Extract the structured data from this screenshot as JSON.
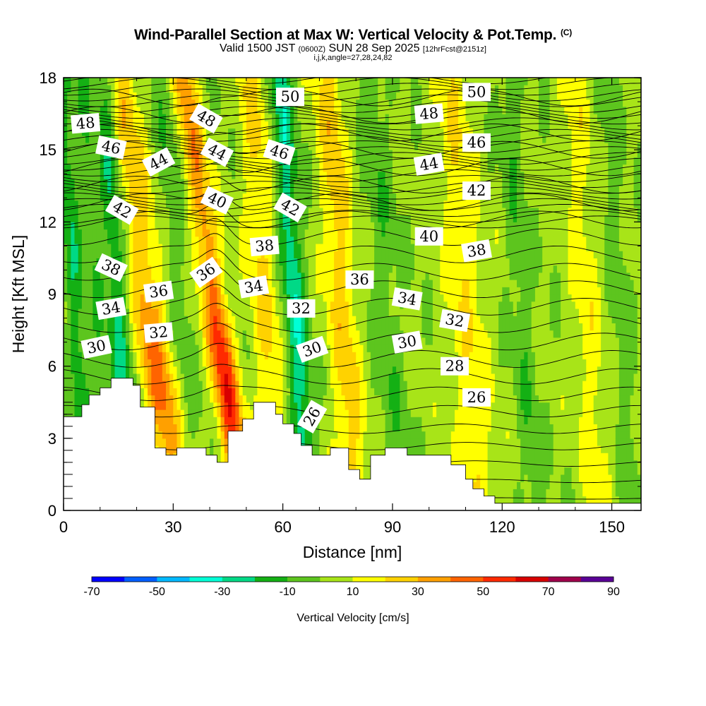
{
  "title": {
    "main": "Wind-Parallel Section at Max W: Vertical Velocity & Pot.Temp.",
    "copyright": "(C)",
    "valid_prefix": "Valid 1500 JST",
    "utc": "(0600Z)",
    "valid_date": "SUN 28 Sep 2025",
    "forecast": "[12hrFcst@2151z]",
    "indices": "i,j,k,angle=27,28,24,82"
  },
  "chart_data": {
    "type": "heatmap",
    "xlabel": "Distance [nm]",
    "ylabel": "Height [Kft MSL]",
    "xlim": [
      0,
      158
    ],
    "ylim": [
      0,
      18
    ],
    "x_ticks": [
      "0",
      "30",
      "60",
      "90",
      "120",
      "150"
    ],
    "y_ticks": [
      "0",
      "3",
      "6",
      "9",
      "12",
      "15",
      "18"
    ],
    "colorbar": {
      "label": "Vertical Velocity [cm/s]",
      "tick_labels": [
        "-70",
        "-50",
        "-30",
        "-10",
        "10",
        "30",
        "50",
        "70",
        "90"
      ],
      "bounds": [
        -70,
        90
      ],
      "colors": [
        "#0000ff",
        "#005fff",
        "#00b9ff",
        "#00ffd7",
        "#00d986",
        "#14b014",
        "#5dc51e",
        "#a8e418",
        "#ffff00",
        "#ffd200",
        "#ffa000",
        "#ff6400",
        "#ff2a00",
        "#d80000",
        "#a0004b",
        "#5a0096"
      ]
    },
    "terrain": [
      [
        0,
        3.9
      ],
      [
        5,
        3.9
      ],
      [
        5,
        4.4
      ],
      [
        7,
        4.4
      ],
      [
        7,
        4.8
      ],
      [
        10,
        4.8
      ],
      [
        10,
        5.1
      ],
      [
        13,
        5.1
      ],
      [
        13,
        5.5
      ],
      [
        19,
        5.5
      ],
      [
        19,
        5.2
      ],
      [
        21,
        5.2
      ],
      [
        21,
        4.3
      ],
      [
        25,
        4.3
      ],
      [
        25,
        2.6
      ],
      [
        28,
        2.6
      ],
      [
        28,
        2.3
      ],
      [
        31,
        2.3
      ],
      [
        31,
        2.6
      ],
      [
        39,
        2.6
      ],
      [
        39,
        2.3
      ],
      [
        42,
        2.3
      ],
      [
        42,
        2.0
      ],
      [
        45,
        2.0
      ],
      [
        45,
        3.3
      ],
      [
        49,
        3.3
      ],
      [
        49,
        3.8
      ],
      [
        52,
        3.8
      ],
      [
        52,
        4.5
      ],
      [
        58,
        4.5
      ],
      [
        58,
        4.0
      ],
      [
        60,
        4.0
      ],
      [
        60,
        3.6
      ],
      [
        63,
        3.6
      ],
      [
        63,
        3.2
      ],
      [
        65,
        3.2
      ],
      [
        65,
        2.7
      ],
      [
        68,
        2.7
      ],
      [
        68,
        2.3
      ],
      [
        73,
        2.3
      ],
      [
        73,
        2.6
      ],
      [
        78,
        2.6
      ],
      [
        78,
        1.7
      ],
      [
        81,
        1.7
      ],
      [
        81,
        1.3
      ],
      [
        84,
        1.3
      ],
      [
        84,
        2.3
      ],
      [
        88,
        2.3
      ],
      [
        88,
        2.6
      ],
      [
        94,
        2.6
      ],
      [
        94,
        2.3
      ],
      [
        106,
        2.3
      ],
      [
        106,
        1.9
      ],
      [
        110,
        1.9
      ],
      [
        110,
        1.3
      ],
      [
        112,
        1.3
      ],
      [
        112,
        0.9
      ],
      [
        115,
        0.9
      ],
      [
        115,
        0.6
      ],
      [
        118,
        0.6
      ],
      [
        118,
        0.3
      ],
      [
        158,
        0.3
      ]
    ],
    "w_bands": [
      {
        "x": 3,
        "w": -20,
        "width": 2.5
      },
      {
        "x": 9,
        "w": -10,
        "width": 3
      },
      {
        "x": 15,
        "w": -25,
        "width": 3
      },
      {
        "x": 23,
        "w": 40,
        "width": 5
      },
      {
        "x": 31,
        "w": -10,
        "width": 4
      },
      {
        "x": 41,
        "w": 55,
        "width": 3.5
      },
      {
        "x": 55,
        "w": 18,
        "width": 4
      },
      {
        "x": 63,
        "w": -30,
        "width": 3
      },
      {
        "x": 76,
        "w": 22,
        "width": 4
      },
      {
        "x": 88,
        "w": -10,
        "width": 4
      },
      {
        "x": 110,
        "w": 15,
        "width": 5
      },
      {
        "x": 125,
        "w": -10,
        "width": 3
      },
      {
        "x": 143,
        "w": 12,
        "width": 4
      },
      {
        "x": 152,
        "w": -8,
        "width": 3
      }
    ],
    "theta_levels": [
      26,
      28,
      30,
      32,
      34,
      36,
      38,
      40,
      42,
      44,
      46,
      48,
      50
    ],
    "theta_labels": [
      {
        "text": "48",
        "x": 6,
        "y": 16.1,
        "angle": -5
      },
      {
        "text": "46",
        "x": 13,
        "y": 15.1,
        "angle": 12
      },
      {
        "text": "44",
        "x": 26,
        "y": 14.5,
        "angle": -28
      },
      {
        "text": "42",
        "x": 16,
        "y": 12.5,
        "angle": 30
      },
      {
        "text": "38",
        "x": 13,
        "y": 10.1,
        "angle": 25
      },
      {
        "text": "36",
        "x": 26,
        "y": 9.1,
        "angle": -8
      },
      {
        "text": "34",
        "x": 13,
        "y": 8.4,
        "angle": -10
      },
      {
        "text": "32",
        "x": 26,
        "y": 7.4,
        "angle": -5
      },
      {
        "text": "30",
        "x": 9,
        "y": 6.8,
        "angle": -12
      },
      {
        "text": "48",
        "x": 39,
        "y": 16.3,
        "angle": 30
      },
      {
        "text": "44",
        "x": 42,
        "y": 14.9,
        "angle": 28
      },
      {
        "text": "40",
        "x": 42,
        "y": 12.9,
        "angle": 25
      },
      {
        "text": "36",
        "x": 39,
        "y": 9.9,
        "angle": -35
      },
      {
        "text": "34",
        "x": 52,
        "y": 9.3,
        "angle": -10
      },
      {
        "text": "38",
        "x": 55,
        "y": 11.0,
        "angle": -5
      },
      {
        "text": "46",
        "x": 59,
        "y": 14.9,
        "angle": 18
      },
      {
        "text": "42",
        "x": 62,
        "y": 12.6,
        "angle": 30
      },
      {
        "text": "50",
        "x": 62,
        "y": 17.2,
        "angle": 0
      },
      {
        "text": "32",
        "x": 65,
        "y": 8.4,
        "angle": 0
      },
      {
        "text": "30",
        "x": 68,
        "y": 6.7,
        "angle": -20
      },
      {
        "text": "26",
        "x": 68,
        "y": 3.9,
        "angle": -60
      },
      {
        "text": "36",
        "x": 81,
        "y": 9.6,
        "angle": 0
      },
      {
        "text": "34",
        "x": 94,
        "y": 8.8,
        "angle": 10
      },
      {
        "text": "30",
        "x": 94,
        "y": 7.0,
        "angle": -10
      },
      {
        "text": "40",
        "x": 100,
        "y": 11.4,
        "angle": 0
      },
      {
        "text": "44",
        "x": 100,
        "y": 14.4,
        "angle": -10
      },
      {
        "text": "48",
        "x": 100,
        "y": 16.5,
        "angle": -5
      },
      {
        "text": "32",
        "x": 107,
        "y": 7.9,
        "angle": 10
      },
      {
        "text": "28",
        "x": 107,
        "y": 6.0,
        "angle": 0
      },
      {
        "text": "50",
        "x": 113,
        "y": 17.4,
        "angle": 0
      },
      {
        "text": "46",
        "x": 113,
        "y": 15.3,
        "angle": 0
      },
      {
        "text": "42",
        "x": 113,
        "y": 13.3,
        "angle": 0
      },
      {
        "text": "38",
        "x": 113,
        "y": 10.8,
        "angle": -10
      },
      {
        "text": "26",
        "x": 113,
        "y": 4.7,
        "angle": 0
      }
    ]
  }
}
